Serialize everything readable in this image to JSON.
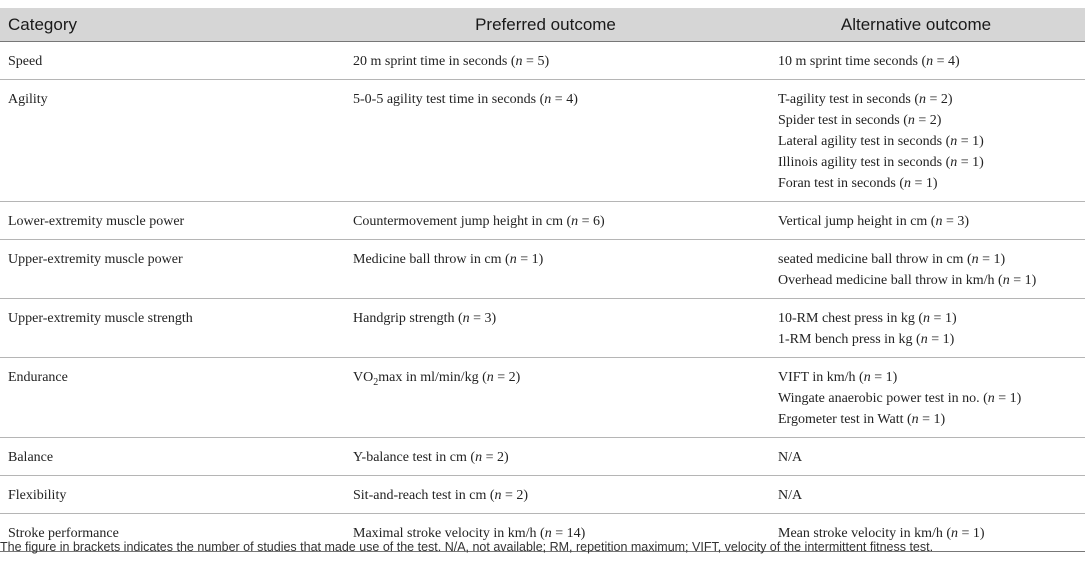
{
  "header": {
    "category": "Category",
    "preferred": "Preferred outcome",
    "alternative": "Alternative outcome"
  },
  "rows": [
    {
      "category": "Speed",
      "preferred": {
        "pre": "20 m sprint time in seconds (",
        "n": "n",
        "post": " = 5)"
      },
      "alternatives": [
        {
          "pre": "10 m sprint time seconds (",
          "n": "n",
          "post": " = 4)"
        }
      ]
    },
    {
      "category": "Agility",
      "preferred": {
        "pre": "5-0-5 agility test time in seconds (",
        "n": "n",
        "post": " = 4)"
      },
      "alternatives": [
        {
          "pre": "T-agility test in seconds (",
          "n": "n",
          "post": " = 2)"
        },
        {
          "pre": "Spider test in seconds (",
          "n": "n",
          "post": " = 2)"
        },
        {
          "pre": "Lateral agility test in seconds (",
          "n": "n",
          "post": " = 1)"
        },
        {
          "pre": "Illinois agility test in seconds (",
          "n": "n",
          "post": " = 1)"
        },
        {
          "pre": "Foran test in seconds (",
          "n": "n",
          "post": " = 1)"
        }
      ]
    },
    {
      "category": "Lower-extremity muscle power",
      "preferred": {
        "pre": "Countermovement jump height in cm (",
        "n": "n",
        "post": " = 6)"
      },
      "alternatives": [
        {
          "pre": "Vertical jump height in cm (",
          "n": "n",
          "post": " = 3)"
        }
      ]
    },
    {
      "category": "Upper-extremity muscle power",
      "preferred": {
        "pre": "Medicine ball throw in cm (",
        "n": "n",
        "post": " = 1)"
      },
      "alternatives": [
        {
          "pre": "seated medicine ball throw in cm (",
          "n": "n",
          "post": " = 1)"
        },
        {
          "pre": "Overhead medicine ball throw in km/h (",
          "n": "n",
          "post": " = 1)"
        }
      ]
    },
    {
      "category": "Upper-extremity muscle strength",
      "preferred": {
        "pre": "Handgrip strength (",
        "n": "n",
        "post": " = 3)"
      },
      "alternatives": [
        {
          "pre": "10-RM chest press in kg (",
          "n": "n",
          "post": " = 1)"
        },
        {
          "pre": "1-RM bench press in kg (",
          "n": "n",
          "post": " = 1)"
        }
      ]
    },
    {
      "category": "Endurance",
      "preferred": {
        "pre": "VO",
        "sub": "2",
        "mid": "max in ml/min/kg (",
        "n": "n",
        "post": " = 2)"
      },
      "alternatives": [
        {
          "pre": "VIFT in km/h (",
          "n": "n",
          "post": " = 1)"
        },
        {
          "pre": "Wingate anaerobic power test in no. (",
          "n": "n",
          "post": " = 1)"
        },
        {
          "pre": "Ergometer test in Watt (",
          "n": "n",
          "post": " = 1)"
        }
      ]
    },
    {
      "category": "Balance",
      "preferred": {
        "pre": "Y-balance test in cm (",
        "n": "n",
        "post": " = 2)"
      },
      "alternatives": [
        {
          "pre": "N/A"
        }
      ]
    },
    {
      "category": "Flexibility",
      "preferred": {
        "pre": "Sit-and-reach test in cm (",
        "n": "n",
        "post": " = 2)"
      },
      "alternatives": [
        {
          "pre": "N/A"
        }
      ]
    },
    {
      "category": "Stroke performance",
      "preferred": {
        "pre": "Maximal stroke velocity in km/h (",
        "n": "n",
        "post": " = 14)"
      },
      "alternatives": [
        {
          "pre": "Mean stroke velocity in km/h (",
          "n": "n",
          "post": " = 1)"
        }
      ]
    }
  ],
  "footnote": "The figure in brackets indicates the number of studies that made use of the test. N/A, not available; RM, repetition maximum; VIFT, velocity of the intermittent fitness test."
}
